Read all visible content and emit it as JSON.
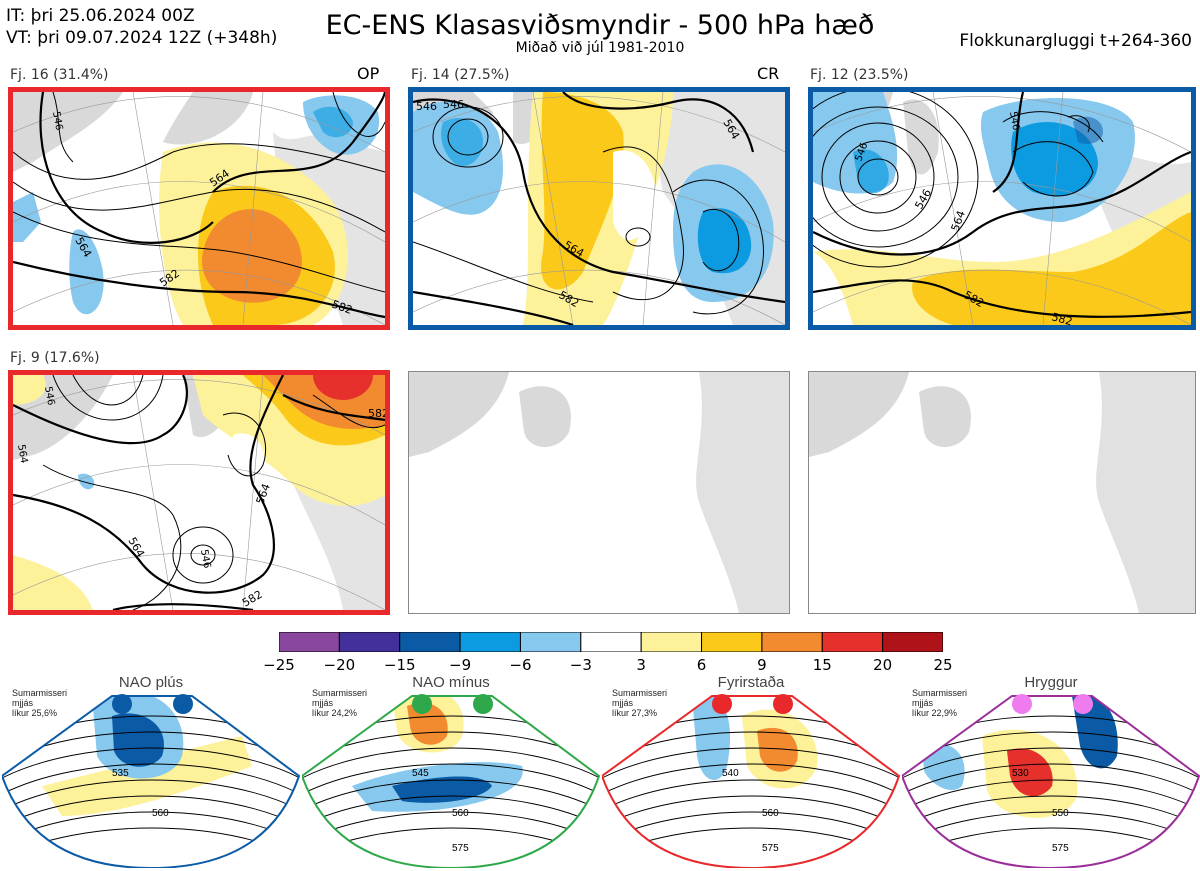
{
  "header": {
    "it_line": "IT: þri 25.06.2024 00Z",
    "vt_line": "VT: þri 09.07.2024 12Z  (+348h)",
    "title": "EC-ENS Klasasviðsmyndir - 500 hPa hæð",
    "subtitle": "Miðað við júl 1981-2010",
    "window": "Flokkunargluggi t+264-360"
  },
  "clusters": [
    {
      "label": "Fj. 16 (31.4%)",
      "tag": "OP",
      "border_color": "#e8282b"
    },
    {
      "label": "Fj. 14 (27.5%)",
      "tag": "CR",
      "border_color": "#0b5aa6"
    },
    {
      "label": "Fj. 12 (23.5%)",
      "tag": "",
      "border_color": "#0b5aa6"
    },
    {
      "label": "Fj. 9 (17.6%)",
      "tag": "",
      "border_color": "#e8282b"
    }
  ],
  "contour_labels": [
    "546",
    "564",
    "582"
  ],
  "colorbar": {
    "ticks": [
      "−25",
      "−20",
      "−15",
      "−9",
      "−6",
      "−3",
      "3",
      "6",
      "9",
      "15",
      "20",
      "25"
    ],
    "colors": [
      "#8a47a0",
      "#44309a",
      "#0b5aa6",
      "#0c9be0",
      "#86c8ee",
      "#ffffff",
      "#fdf29a",
      "#fbc91a",
      "#f28a30",
      "#e6302c",
      "#b0121a"
    ]
  },
  "regimes": [
    {
      "name": "NAO plús",
      "season": "Sumarmisseri",
      "metric": "mjjás",
      "likelihood": "líkur 25,6%",
      "color": "#0b5aa6",
      "contours": [
        "535",
        "560"
      ]
    },
    {
      "name": "NAO mínus",
      "season": "Sumarmisseri",
      "metric": "mjjás",
      "likelihood": "líkur 24,2%",
      "color": "#2ea84a",
      "contours": [
        "545",
        "560",
        "575"
      ]
    },
    {
      "name": "Fyrirstaða",
      "season": "Sumarmisseri",
      "metric": "mjjás",
      "likelihood": "líkur 27,3%",
      "color": "#e8282b",
      "contours": [
        "540",
        "560",
        "575"
      ]
    },
    {
      "name": "Hryggur",
      "season": "Sumarmisseri",
      "metric": "mjjás",
      "likelihood": "líkur 22,9%",
      "color": "#9a2f9a",
      "dot_color": "#ee7cee",
      "contours": [
        "530",
        "550",
        "575"
      ]
    }
  ]
}
